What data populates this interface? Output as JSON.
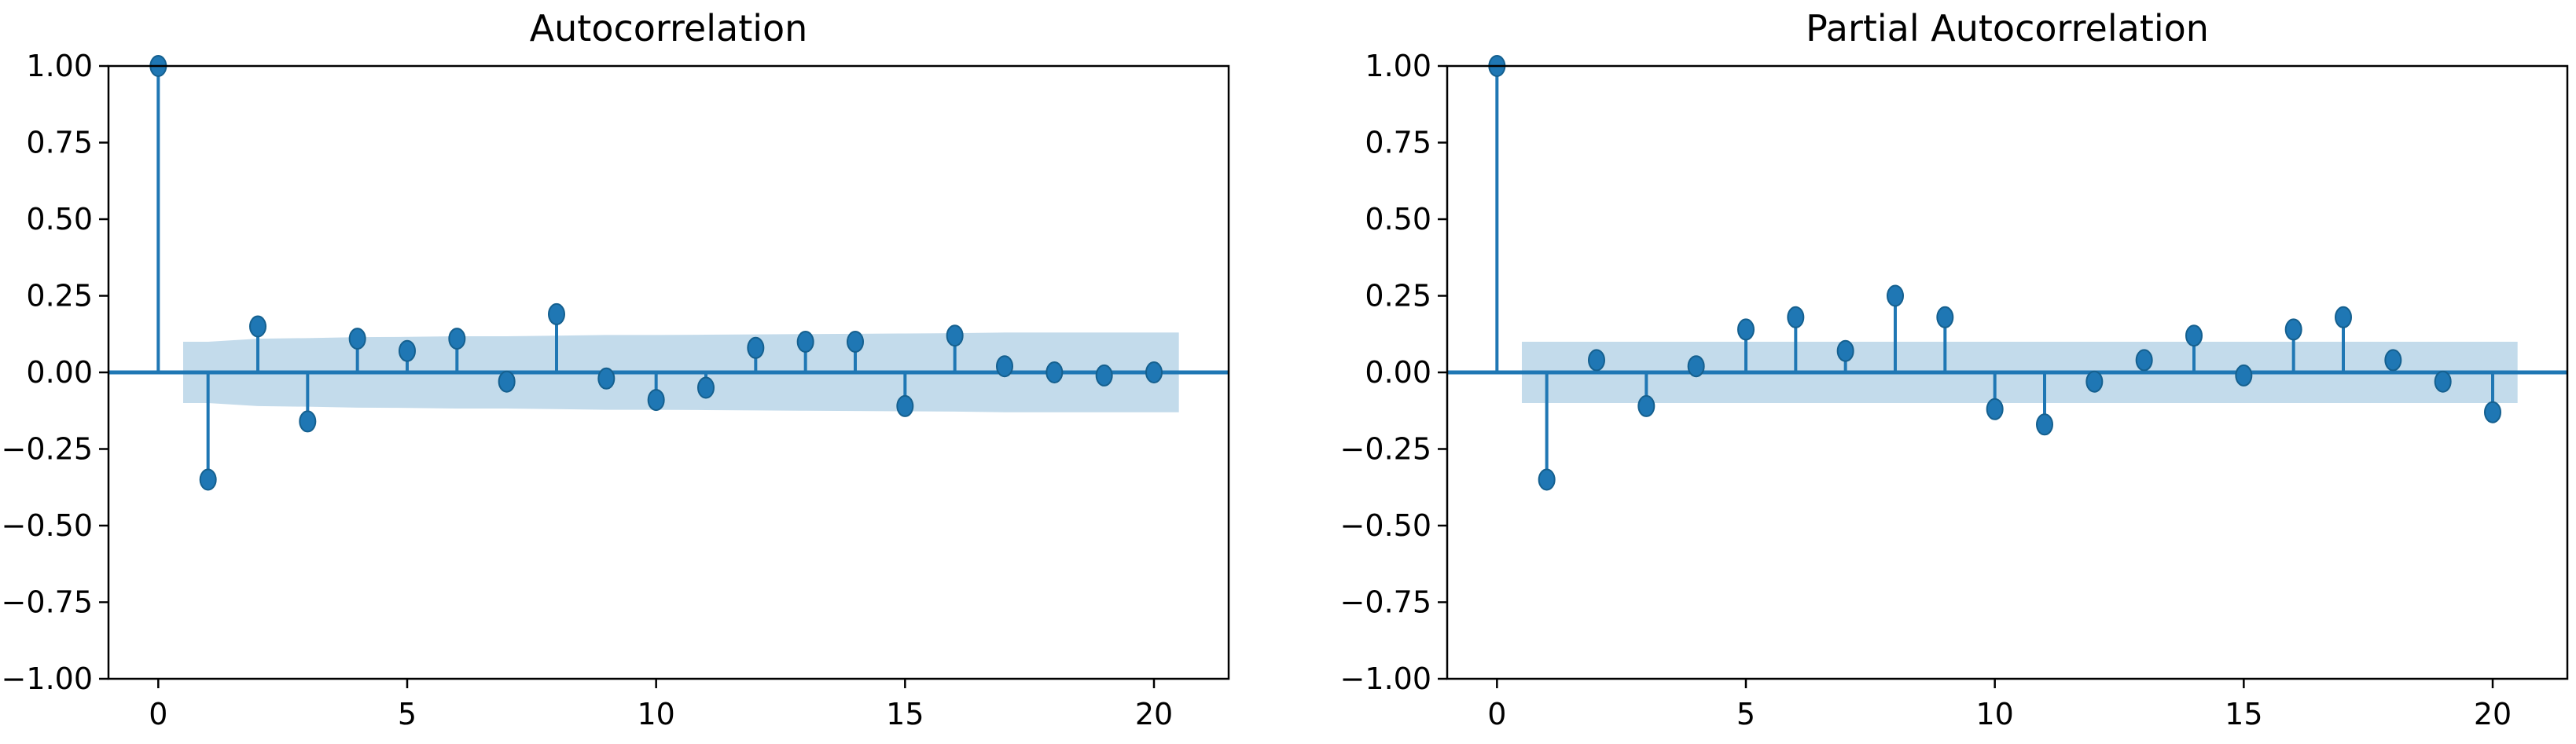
{
  "colors": {
    "stem": "#1f77b4",
    "band": "#a9cce3",
    "axis": "#000000",
    "background": "#ffffff"
  },
  "chart_data": [
    {
      "type": "stem",
      "title": "Autocorrelation",
      "xlabel": "",
      "ylabel": "",
      "xlim": [
        -1,
        21.5
      ],
      "ylim": [
        -1.0,
        1.0
      ],
      "xticks": [
        0,
        5,
        10,
        15,
        20
      ],
      "yticks": [
        1.0,
        0.75,
        0.5,
        0.25,
        0.0,
        -0.25,
        -0.5,
        -0.75,
        -1.0
      ],
      "ytick_labels": [
        "1.00",
        "0.75",
        "0.50",
        "0.25",
        "0.00",
        "−0.25",
        "−0.50",
        "−0.75",
        "−1.00"
      ],
      "lags": [
        0,
        1,
        2,
        3,
        4,
        5,
        6,
        7,
        8,
        9,
        10,
        11,
        12,
        13,
        14,
        15,
        16,
        17,
        18,
        19,
        20
      ],
      "values": [
        1.0,
        -0.35,
        0.15,
        -0.16,
        0.11,
        0.07,
        0.11,
        -0.03,
        0.19,
        -0.02,
        -0.09,
        -0.05,
        0.08,
        0.1,
        0.1,
        -0.11,
        0.12,
        0.02,
        0.0,
        -0.01,
        0.0
      ],
      "confidence_band": {
        "x": [
          0.5,
          1,
          2,
          3,
          4,
          5,
          6,
          7,
          8,
          9,
          10,
          11,
          12,
          13,
          14,
          15,
          16,
          17,
          18,
          19,
          20,
          20.5
        ],
        "upper": [
          0.1,
          0.1,
          0.11,
          0.112,
          0.115,
          0.116,
          0.118,
          0.118,
          0.12,
          0.122,
          0.122,
          0.123,
          0.124,
          0.125,
          0.126,
          0.127,
          0.128,
          0.13,
          0.13,
          0.13,
          0.13,
          0.13
        ],
        "lower": [
          -0.1,
          -0.1,
          -0.11,
          -0.112,
          -0.115,
          -0.116,
          -0.118,
          -0.118,
          -0.12,
          -0.122,
          -0.122,
          -0.123,
          -0.124,
          -0.125,
          -0.126,
          -0.127,
          -0.128,
          -0.13,
          -0.13,
          -0.13,
          -0.13,
          -0.13
        ]
      }
    },
    {
      "type": "stem",
      "title": "Partial Autocorrelation",
      "xlabel": "",
      "ylabel": "",
      "xlim": [
        -1,
        21.5
      ],
      "ylim": [
        -1.0,
        1.0
      ],
      "xticks": [
        0,
        5,
        10,
        15,
        20
      ],
      "yticks": [
        1.0,
        0.75,
        0.5,
        0.25,
        0.0,
        -0.25,
        -0.5,
        -0.75,
        -1.0
      ],
      "ytick_labels": [
        "1.00",
        "0.75",
        "0.50",
        "0.25",
        "0.00",
        "−0.25",
        "−0.50",
        "−0.75",
        "−1.00"
      ],
      "lags": [
        0,
        1,
        2,
        3,
        4,
        5,
        6,
        7,
        8,
        9,
        10,
        11,
        12,
        13,
        14,
        15,
        16,
        17,
        18,
        19,
        20
      ],
      "values": [
        1.0,
        -0.35,
        0.04,
        -0.11,
        0.02,
        0.14,
        0.18,
        0.07,
        0.25,
        0.18,
        -0.12,
        -0.17,
        -0.03,
        0.04,
        0.12,
        -0.01,
        0.14,
        0.18,
        0.04,
        -0.03,
        -0.13
      ],
      "confidence_band": {
        "x": [
          0.5,
          20.5
        ],
        "upper": [
          0.1,
          0.1
        ],
        "lower": [
          -0.1,
          -0.1
        ]
      }
    }
  ]
}
